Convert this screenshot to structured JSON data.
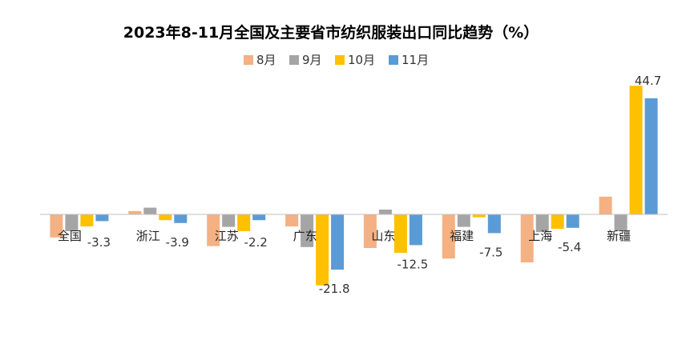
{
  "chart_data": {
    "type": "bar",
    "title": "2023年8-11月全国及主要省市纺织服装出口同比趋势（%）",
    "categories": [
      "全国",
      "浙江",
      "江苏",
      "广东",
      "山东",
      "福建",
      "上海",
      "新疆"
    ],
    "series": [
      {
        "name": "8月",
        "color": "#F4B183",
        "values": [
          -4.8,
          0.7,
          -6.6,
          -2.5,
          -7.0,
          -9.2,
          -10.0,
          3.7
        ]
      },
      {
        "name": "9月",
        "color": "#A5A5A5",
        "values": [
          -3.5,
          1.4,
          -2.6,
          -6.8,
          1.0,
          -2.6,
          -3.7,
          -3.5
        ]
      },
      {
        "name": "10月",
        "color": "#FFC000",
        "values": [
          -2.5,
          -1.2,
          -3.5,
          -14.8,
          -8.0,
          -0.6,
          -3.0,
          26.8
        ]
      },
      {
        "name": "11月",
        "color": "#5B9BD5",
        "values": [
          -1.4,
          -1.8,
          -1.2,
          -11.5,
          -6.4,
          -3.9,
          -2.8,
          24.2
        ]
      }
    ],
    "data_labels": [
      {
        "category": "全国",
        "text": "-3.3"
      },
      {
        "category": "浙江",
        "text": "-3.9"
      },
      {
        "category": "江苏",
        "text": "-2.2"
      },
      {
        "category": "广东",
        "text": "-21.8"
      },
      {
        "category": "山东",
        "text": "-12.5"
      },
      {
        "category": "福建",
        "text": "-7.5"
      },
      {
        "category": "上海",
        "text": "-5.4"
      },
      {
        "category": "新疆",
        "text": "44.7"
      }
    ],
    "ylim": [
      -18.5,
      28.5
    ],
    "legend_position": "top",
    "grid": false,
    "xlabel": "",
    "ylabel": ""
  }
}
